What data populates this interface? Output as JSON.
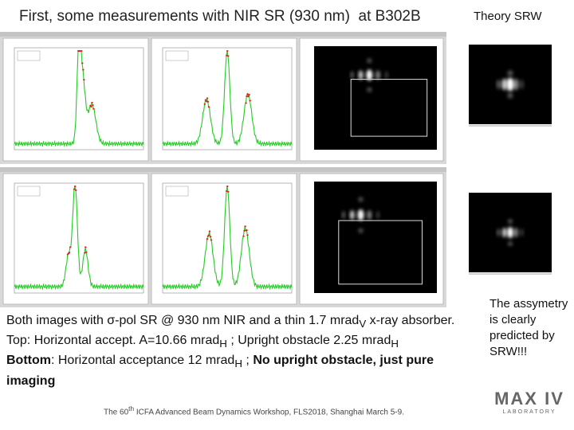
{
  "title": "First, some measurements with NIR SR (930 nm)  at B302B",
  "side_title": "Theory SRW",
  "body": {
    "line1": {
      "text": "Both images with σ-pol SR @ 930 nm NIR and a thin 1.7 mrad",
      "sub": "V",
      "tail": " x-ray absorber."
    },
    "line2": {
      "text": "Top: Horizontal accept. A=10.66 mrad",
      "sub": "H",
      "mid": " ; Upright obstacle 2.25 mrad",
      "sub2": "H"
    },
    "line3": {
      "lead": "Bottom",
      "text": ": Horizontal acceptance 12 mrad",
      "sub": "H",
      "mid": " ; ",
      "bold": "No upright obstacle, just pure imaging"
    }
  },
  "note": "The assymetry is clearly predicted by SRW!!!",
  "footer": {
    "text": "The 60",
    "sup": "th",
    "tail": " ICFA Advanced Beam Dynamics Workshop, FLS2018, Shanghai March 5-9."
  },
  "logo": {
    "name": "MAX IV",
    "sub": "LABORATORY"
  }
}
